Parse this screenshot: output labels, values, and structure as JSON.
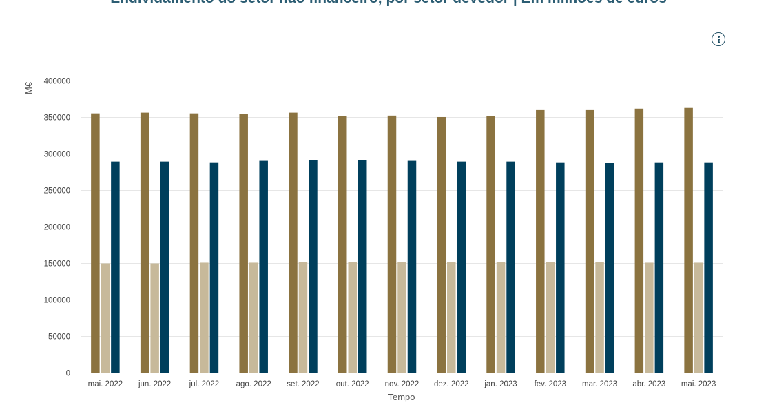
{
  "header": {
    "title": "Endividamento do setor não financeiro, por setor devedor | Em milhões de euros"
  },
  "menu": {
    "icon": "vertical-dots-menu-icon"
  },
  "chart_data": {
    "type": "bar",
    "title": "Endividamento do setor não financeiro, por setor devedor | Em milhões de euros",
    "xlabel": "Tempo",
    "ylabel": "M€",
    "ylim": [
      0,
      400000
    ],
    "yticks": [
      "0",
      "50000",
      "100000",
      "150000",
      "200000",
      "250000",
      "300000",
      "350000",
      "400000"
    ],
    "grid": true,
    "categories": [
      "mai. 2022",
      "jun. 2022",
      "jul. 2022",
      "ago. 2022",
      "set. 2022",
      "out. 2022",
      "nov. 2022",
      "dez. 2022",
      "jan. 2023",
      "fev. 2023",
      "mar. 2023",
      "abr. 2023",
      "mai. 2023"
    ],
    "series": [
      {
        "color": "#8b7340",
        "values": [
          355500,
          356500,
          355500,
          354500,
          356500,
          351500,
          352500,
          350500,
          351500,
          360000,
          360000,
          362000,
          363000
        ]
      },
      {
        "color": "#c7b99a",
        "values": [
          150000,
          150000,
          151000,
          151000,
          152000,
          152000,
          152000,
          152000,
          152000,
          152000,
          152000,
          151000,
          151000
        ]
      },
      {
        "color": "#003f5c",
        "values": [
          289500,
          289500,
          288500,
          290500,
          291500,
          291500,
          290500,
          289500,
          289500,
          288500,
          287500,
          288500,
          288500
        ]
      }
    ]
  }
}
